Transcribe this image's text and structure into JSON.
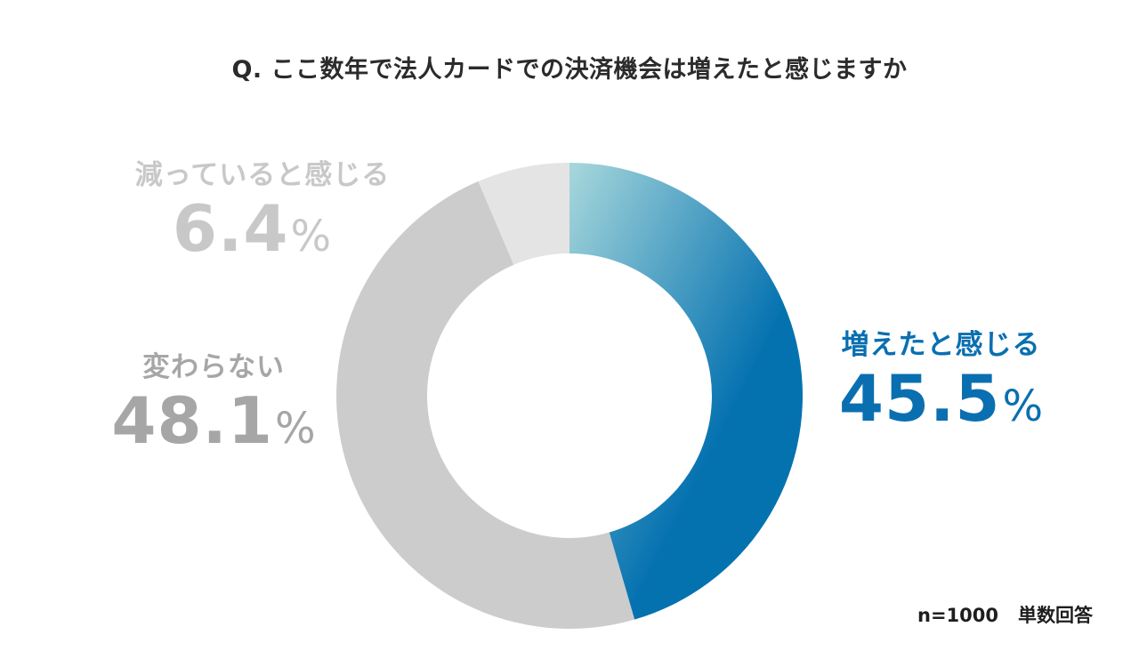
{
  "title": "Q. ここ数年で法人カードでの決済機会は増えたと感じますか",
  "chart_data": {
    "type": "pie",
    "donut": true,
    "slices": [
      {
        "label": "増えたと感じる",
        "value": 45.5,
        "display": "45.5",
        "unit": "%",
        "color_start": "#a8d8dc",
        "color_end": "#0572b0",
        "label_color": "#0a6fb0"
      },
      {
        "label": "変わらない",
        "value": 48.1,
        "display": "48.1",
        "unit": "%",
        "color": "#cccccc",
        "label_color": "#a6a6a6"
      },
      {
        "label": "減っていると感じる",
        "value": 6.4,
        "display": "6.4",
        "unit": "%",
        "color": "#e4e4e4",
        "label_color": "#c8c8c8"
      }
    ],
    "start": "12 o'clock",
    "direction": "clockwise",
    "sample_note": "n=1000",
    "answer_type": "単数回答"
  }
}
